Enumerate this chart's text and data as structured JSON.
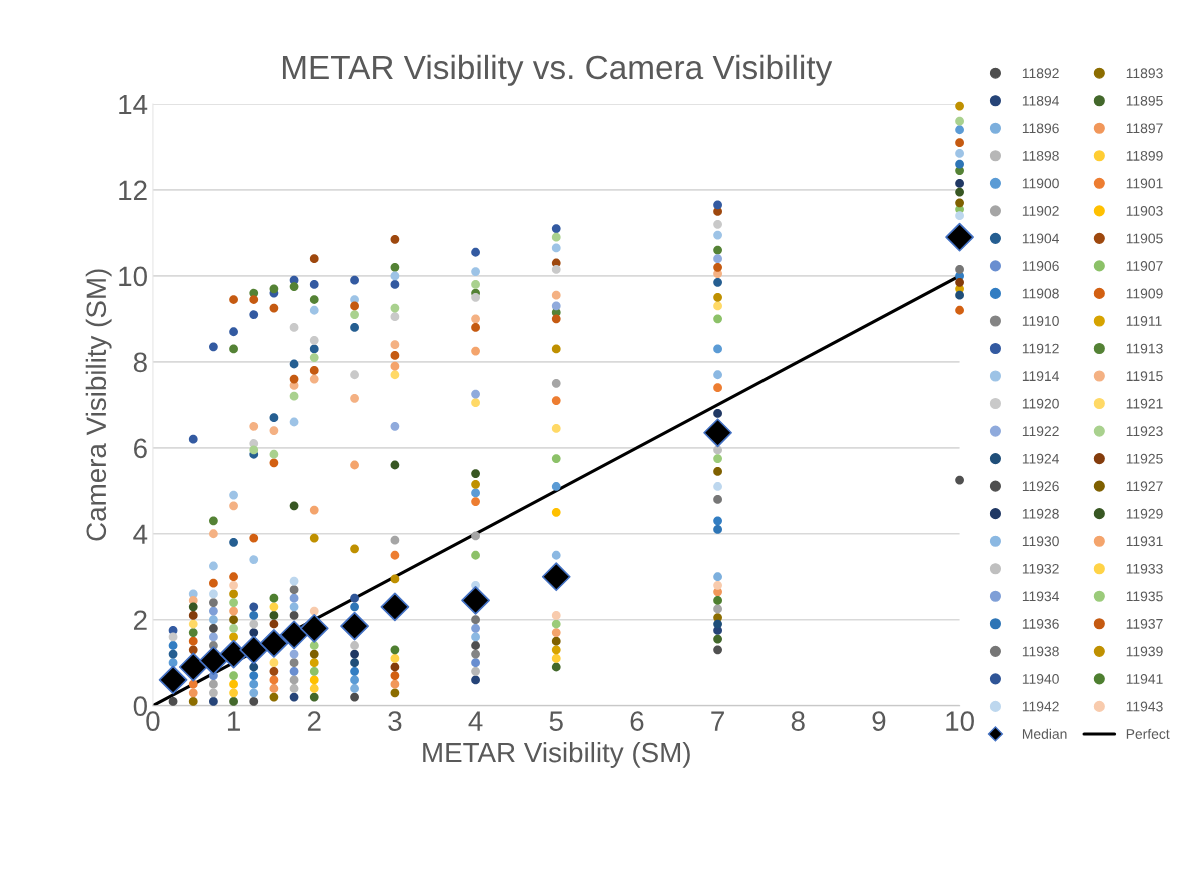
{
  "chart_data": {
    "type": "scatter",
    "title": "METAR Visibility vs. Camera Visibility",
    "xlabel": "METAR Visibility (SM)",
    "ylabel": "Camera Visibility (SM)",
    "x": [
      0.25,
      0.5,
      0.75,
      1,
      1.25,
      1.5,
      1.75,
      2,
      2.5,
      3,
      4,
      5,
      7,
      10
    ],
    "xlim": [
      0,
      10
    ],
    "xticks": [
      0,
      1,
      2,
      3,
      4,
      5,
      6,
      7,
      8,
      9,
      10
    ],
    "ylim": [
      0,
      14
    ],
    "yticks": [
      0,
      2,
      4,
      6,
      8,
      10,
      12,
      14
    ],
    "grid": "y",
    "legend": "right",
    "marker": "circle",
    "series": [
      {
        "name": "11892",
        "color": "#4d4d4d",
        "values": [
          0.1,
          null,
          null,
          null,
          0.1,
          null,
          null,
          null,
          0.2,
          null,
          null,
          null,
          null,
          null
        ]
      },
      {
        "name": "11893",
        "color": "#8c6d00",
        "values": [
          null,
          0.1,
          null,
          null,
          null,
          0.2,
          null,
          null,
          null,
          0.3,
          null,
          null,
          2.05,
          null
        ]
      },
      {
        "name": "11894",
        "color": "#264478",
        "values": [
          null,
          null,
          0.1,
          null,
          null,
          null,
          0.2,
          null,
          null,
          null,
          0.6,
          null,
          1.75,
          null
        ]
      },
      {
        "name": "11895",
        "color": "#43682b",
        "values": [
          null,
          null,
          null,
          0.1,
          null,
          null,
          null,
          0.2,
          null,
          null,
          null,
          0.9,
          1.55,
          null
        ]
      },
      {
        "name": "11896",
        "color": "#7cafdd",
        "values": [
          null,
          null,
          null,
          null,
          0.3,
          null,
          null,
          null,
          0.4,
          null,
          null,
          null,
          3.0,
          null
        ]
      },
      {
        "name": "11897",
        "color": "#f1975a",
        "values": [
          null,
          0.3,
          null,
          null,
          null,
          0.4,
          null,
          null,
          null,
          0.5,
          null,
          null,
          2.65,
          null
        ]
      },
      {
        "name": "11898",
        "color": "#b7b7b7",
        "values": [
          null,
          null,
          0.3,
          null,
          null,
          null,
          0.4,
          null,
          null,
          null,
          0.8,
          null,
          null,
          null
        ]
      },
      {
        "name": "11899",
        "color": "#ffcd33",
        "values": [
          null,
          null,
          null,
          0.3,
          null,
          null,
          null,
          0.4,
          null,
          null,
          null,
          1.1,
          null,
          null
        ]
      },
      {
        "name": "11900",
        "color": "#5b9bd5",
        "values": [
          1.0,
          null,
          null,
          null,
          0.5,
          null,
          null,
          null,
          0.6,
          null,
          4.95,
          5.1,
          8.3,
          13.4
        ]
      },
      {
        "name": "11901",
        "color": "#ed7d31",
        "values": [
          null,
          0.5,
          null,
          null,
          null,
          0.6,
          null,
          null,
          null,
          3.5,
          4.75,
          7.1,
          7.4,
          null
        ]
      },
      {
        "name": "11902",
        "color": "#a5a5a5",
        "values": [
          null,
          null,
          0.5,
          null,
          null,
          null,
          0.6,
          null,
          null,
          3.85,
          3.95,
          7.5,
          2.25,
          null
        ]
      },
      {
        "name": "11903",
        "color": "#ffc000",
        "values": [
          null,
          null,
          null,
          0.5,
          null,
          null,
          null,
          0.6,
          null,
          null,
          null,
          4.5,
          null,
          null
        ]
      },
      {
        "name": "11904",
        "color": "#255e91",
        "values": [
          1.2,
          null,
          null,
          3.8,
          5.85,
          6.7,
          7.95,
          8.3,
          8.8,
          null,
          null,
          null,
          9.85,
          null
        ]
      },
      {
        "name": "11905",
        "color": "#9e480e",
        "values": [
          null,
          1.3,
          null,
          null,
          null,
          0.8,
          null,
          10.4,
          null,
          10.85,
          null,
          10.3,
          11.5,
          null
        ]
      },
      {
        "name": "11906",
        "color": "#698ed0",
        "values": [
          null,
          null,
          0.7,
          null,
          null,
          null,
          0.8,
          null,
          null,
          null,
          1.0,
          null,
          null,
          null
        ]
      },
      {
        "name": "11907",
        "color": "#8cc168",
        "values": [
          null,
          null,
          null,
          0.7,
          null,
          null,
          null,
          0.8,
          null,
          null,
          3.5,
          5.75,
          9.0,
          11.55
        ]
      },
      {
        "name": "11908",
        "color": "#327dc2",
        "values": [
          1.4,
          null,
          null,
          null,
          0.7,
          null,
          null,
          null,
          0.8,
          null,
          null,
          null,
          4.3,
          10.0
        ]
      },
      {
        "name": "11909",
        "color": "#d26012",
        "values": [
          null,
          1.5,
          2.85,
          3.0,
          3.9,
          5.65,
          null,
          null,
          null,
          0.7,
          null,
          null,
          null,
          9.2
        ]
      },
      {
        "name": "11910",
        "color": "#848484",
        "values": [
          null,
          null,
          1.4,
          null,
          null,
          null,
          1.0,
          null,
          null,
          null,
          1.2,
          null,
          null,
          null
        ]
      },
      {
        "name": "11911",
        "color": "#d6a300",
        "values": [
          null,
          null,
          null,
          1.6,
          null,
          null,
          null,
          1.0,
          null,
          null,
          null,
          1.3,
          null,
          9.7
        ]
      },
      {
        "name": "11912",
        "color": "#335aa1",
        "values": [
          1.75,
          6.2,
          8.35,
          8.7,
          9.1,
          9.6,
          9.9,
          9.8,
          9.9,
          9.8,
          10.55,
          11.1,
          11.65,
          null
        ]
      },
      {
        "name": "11913",
        "color": "#548235",
        "values": [
          null,
          1.7,
          4.3,
          8.3,
          9.6,
          9.7,
          9.75,
          9.45,
          null,
          10.2,
          9.6,
          9.15,
          10.6,
          12.45
        ]
      },
      {
        "name": "11914",
        "color": "#9dc3e6",
        "values": [
          null,
          2.6,
          3.25,
          4.9,
          3.4,
          null,
          6.6,
          9.2,
          9.45,
          10.0,
          10.1,
          10.65,
          10.95,
          12.85
        ]
      },
      {
        "name": "11915",
        "color": "#f4b183",
        "values": [
          null,
          2.45,
          4.0,
          4.65,
          6.5,
          6.4,
          7.45,
          7.6,
          7.15,
          8.4,
          9.0,
          9.55,
          10.05,
          null
        ]
      },
      {
        "name": "11920",
        "color": "#c9c9c9",
        "values": [
          1.6,
          null,
          null,
          null,
          6.1,
          null,
          8.8,
          8.5,
          7.7,
          9.05,
          9.5,
          10.15,
          11.2,
          null
        ]
      },
      {
        "name": "11921",
        "color": "#ffd966",
        "values": [
          null,
          1.9,
          null,
          null,
          null,
          1.0,
          null,
          null,
          null,
          7.7,
          7.05,
          6.45,
          9.3,
          null
        ]
      },
      {
        "name": "11922",
        "color": "#8faadc",
        "values": [
          null,
          null,
          1.6,
          null,
          null,
          null,
          1.2,
          null,
          null,
          6.5,
          7.25,
          9.3,
          10.4,
          null
        ]
      },
      {
        "name": "11923",
        "color": "#a9d18e",
        "values": [
          null,
          null,
          null,
          1.8,
          5.95,
          5.85,
          7.2,
          8.1,
          9.1,
          9.25,
          9.8,
          10.9,
          null,
          13.6
        ]
      },
      {
        "name": "11924",
        "color": "#1f4e79",
        "values": [
          null,
          null,
          null,
          null,
          0.9,
          null,
          null,
          null,
          1.0,
          null,
          null,
          null,
          1.9,
          9.55
        ]
      },
      {
        "name": "11925",
        "color": "#843c0c",
        "values": [
          null,
          2.1,
          null,
          null,
          null,
          1.9,
          null,
          null,
          null,
          0.9,
          null,
          null,
          null,
          9.85
        ]
      },
      {
        "name": "11926",
        "color": "#505050",
        "values": [
          null,
          null,
          1.8,
          null,
          null,
          null,
          2.1,
          null,
          null,
          null,
          1.4,
          null,
          1.3,
          5.25
        ]
      },
      {
        "name": "11927",
        "color": "#7f6000",
        "values": [
          null,
          null,
          null,
          2.0,
          null,
          null,
          null,
          1.2,
          null,
          null,
          null,
          1.5,
          5.45,
          11.7
        ]
      },
      {
        "name": "11928",
        "color": "#203864",
        "values": [
          null,
          null,
          null,
          null,
          1.7,
          null,
          null,
          null,
          1.2,
          null,
          null,
          null,
          6.8,
          12.15
        ]
      },
      {
        "name": "11929",
        "color": "#385723",
        "values": [
          null,
          2.3,
          null,
          null,
          null,
          2.1,
          4.65,
          null,
          null,
          5.6,
          5.4,
          null,
          null,
          11.95
        ]
      },
      {
        "name": "11930",
        "color": "#8bb8e2",
        "values": [
          null,
          null,
          2.0,
          null,
          null,
          null,
          2.3,
          null,
          null,
          null,
          1.6,
          3.5,
          7.7,
          null
        ]
      },
      {
        "name": "11931",
        "color": "#f4a46c",
        "values": [
          null,
          null,
          null,
          2.2,
          null,
          null,
          null,
          4.55,
          5.6,
          7.9,
          8.25,
          1.7,
          null,
          null
        ]
      },
      {
        "name": "11932",
        "color": "#bfbfbf",
        "values": [
          null,
          null,
          null,
          null,
          1.9,
          null,
          null,
          null,
          1.4,
          null,
          null,
          null,
          5.95,
          null
        ]
      },
      {
        "name": "11933",
        "color": "#ffd347",
        "values": [
          null,
          null,
          null,
          null,
          null,
          2.3,
          null,
          null,
          null,
          1.1,
          null,
          null,
          null,
          null
        ]
      },
      {
        "name": "11934",
        "color": "#7f9fd7",
        "values": [
          null,
          null,
          2.2,
          null,
          null,
          null,
          2.5,
          null,
          null,
          null,
          1.8,
          null,
          null,
          null
        ]
      },
      {
        "name": "11935",
        "color": "#9bcb7a",
        "values": [
          null,
          null,
          null,
          2.4,
          null,
          null,
          null,
          1.4,
          null,
          null,
          null,
          1.9,
          5.75,
          null
        ]
      },
      {
        "name": "11936",
        "color": "#2e75b6",
        "values": [
          null,
          null,
          null,
          null,
          2.1,
          null,
          null,
          null,
          2.3,
          null,
          null,
          null,
          4.1,
          12.6
        ]
      },
      {
        "name": "11937",
        "color": "#c55a11",
        "values": [
          null,
          null,
          null,
          9.45,
          9.45,
          9.25,
          7.6,
          7.8,
          9.3,
          8.15,
          8.8,
          9.0,
          10.2,
          13.1
        ]
      },
      {
        "name": "11938",
        "color": "#767676",
        "values": [
          null,
          null,
          2.4,
          null,
          null,
          null,
          2.7,
          null,
          null,
          null,
          2.0,
          null,
          4.8,
          10.15
        ]
      },
      {
        "name": "11939",
        "color": "#bf9000",
        "values": [
          null,
          null,
          null,
          2.6,
          null,
          null,
          null,
          3.9,
          3.65,
          2.95,
          5.15,
          8.3,
          9.5,
          13.95
        ]
      },
      {
        "name": "11940",
        "color": "#2f5597",
        "values": [
          null,
          null,
          null,
          null,
          2.3,
          null,
          null,
          null,
          2.5,
          null,
          null,
          null,
          null,
          null
        ]
      },
      {
        "name": "11941",
        "color": "#4e7f30",
        "values": [
          null,
          null,
          null,
          null,
          null,
          2.5,
          null,
          null,
          null,
          1.3,
          null,
          null,
          2.45,
          null
        ]
      },
      {
        "name": "11942",
        "color": "#bdd7ee",
        "values": [
          null,
          null,
          2.6,
          null,
          null,
          null,
          2.9,
          null,
          null,
          null,
          2.8,
          null,
          5.1,
          11.4
        ]
      },
      {
        "name": "11943",
        "color": "#f8cbad",
        "values": [
          null,
          null,
          null,
          2.8,
          null,
          null,
          null,
          2.2,
          null,
          null,
          null,
          2.1,
          2.8,
          null
        ]
      },
      {
        "name": "Median",
        "color": "#000000",
        "marker": "diamond",
        "values": [
          0.6,
          0.9,
          1.05,
          1.2,
          1.3,
          1.45,
          1.65,
          1.8,
          1.85,
          2.3,
          2.45,
          3.0,
          6.35,
          10.9
        ]
      },
      {
        "name": "Perfect",
        "type": "line",
        "color": "#000000",
        "marker": "none",
        "line_style": "solid",
        "x": [
          0,
          10
        ],
        "values": [
          0,
          10
        ]
      }
    ]
  }
}
